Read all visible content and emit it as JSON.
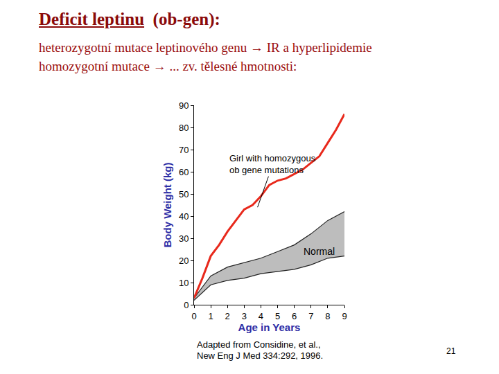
{
  "slide": {
    "title": {
      "underlined": "Deficit leptinu",
      "rest": "(ob-gen):"
    },
    "lines": [
      "heterozygotní mutace leptinového genu → IR a hyperlipidemie",
      "homozygotní mutace → ... zv. tělesné hmotnosti:"
    ],
    "source": [
      "Adapted from Considine, et al.,",
      "New Eng J Med 334:292, 1996."
    ],
    "page_number": "21"
  },
  "chart_data": {
    "type": "line",
    "x_label": "Age in Years",
    "y_label": "Body Weight (kg)",
    "xlim": [
      0,
      9
    ],
    "xticks": [
      0,
      1,
      2,
      3,
      4,
      5,
      6,
      7,
      8,
      9
    ],
    "ylim": [
      0,
      90
    ],
    "yticks": [
      0,
      10,
      20,
      30,
      40,
      50,
      60,
      70,
      80,
      90
    ],
    "grid": false,
    "series": [
      {
        "label_lines": [
          "Girl with homozygous",
          "ob gene mutations"
        ],
        "color": "#e8291c",
        "x": [
          0,
          0.5,
          1,
          1.5,
          2,
          2.5,
          3,
          3.5,
          4,
          4.5,
          5,
          5.5,
          6,
          6.5,
          7,
          7.5,
          8,
          8.5,
          9
        ],
        "values": [
          3,
          12,
          22,
          27,
          33,
          38,
          43,
          45,
          49,
          54,
          56,
          57,
          59,
          61,
          64,
          67,
          73,
          79,
          86
        ],
        "label_point": {
          "x": 3.8,
          "y": 44
        }
      }
    ],
    "band": {
      "name": "Normal",
      "color": "#bdbdbd",
      "line_color": "#222222",
      "x": [
        0,
        1,
        2,
        3,
        4,
        5,
        6,
        7,
        8,
        9
      ],
      "lower": [
        2,
        9,
        11,
        12,
        14,
        15,
        16,
        18,
        21,
        22
      ],
      "upper": [
        3,
        13,
        17,
        19,
        21,
        24,
        27,
        32,
        38,
        42
      ],
      "label_point": {
        "x": 7.5,
        "y": 24
      }
    }
  }
}
